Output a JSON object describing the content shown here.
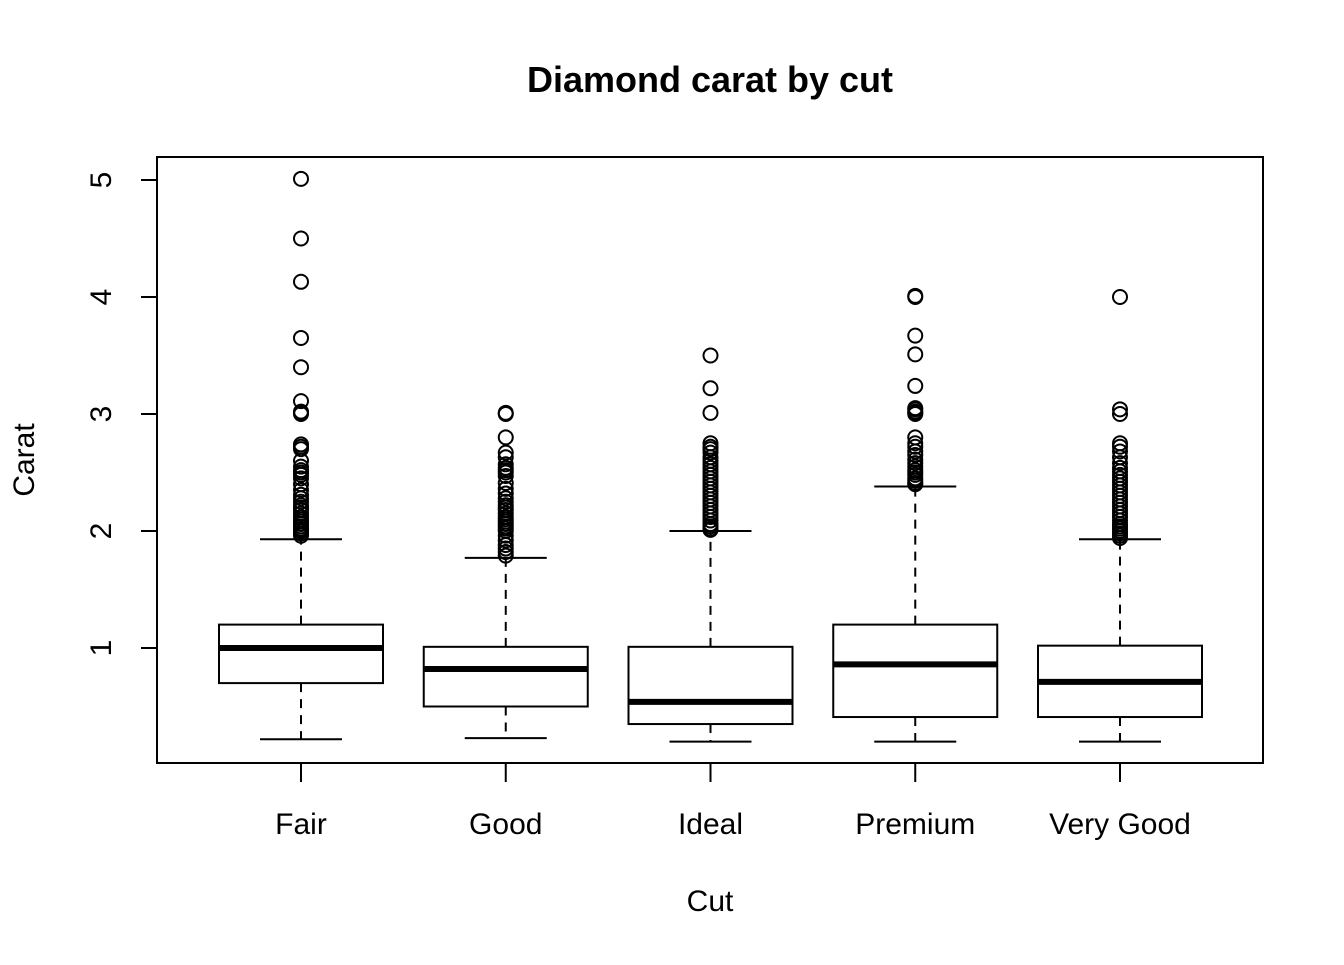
{
  "chart_data": {
    "type": "boxplot",
    "title": "Diamond carat by cut",
    "xlabel": "Cut",
    "ylabel": "Carat",
    "y_ticks": [
      1,
      2,
      3,
      4,
      5
    ],
    "ylim": [
      0.0,
      5.2
    ],
    "grid": false,
    "categories": [
      "Fair",
      "Good",
      "Ideal",
      "Premium",
      "Very Good"
    ],
    "boxes": [
      {
        "category": "Fair",
        "whisker_low": 0.22,
        "q1": 0.7,
        "median": 1.0,
        "q3": 1.2,
        "whisker_high": 1.93,
        "outliers": [
          5.01,
          4.5,
          4.13,
          3.65,
          3.4,
          3.11,
          3.02,
          3.01,
          3.0,
          2.74,
          2.72,
          2.7,
          2.6,
          2.55,
          2.52,
          2.5,
          2.48,
          2.45,
          2.4,
          2.35,
          2.31,
          2.28,
          2.25,
          2.22,
          2.2,
          2.18,
          2.15,
          2.12,
          2.1,
          2.08,
          2.06,
          2.04,
          2.02,
          2.01,
          2.0,
          1.98,
          1.96
        ]
      },
      {
        "category": "Good",
        "whisker_low": 0.23,
        "q1": 0.5,
        "median": 0.82,
        "q3": 1.01,
        "whisker_high": 1.77,
        "outliers": [
          3.01,
          3.0,
          2.8,
          2.67,
          2.63,
          2.57,
          2.54,
          2.52,
          2.5,
          2.47,
          2.41,
          2.36,
          2.32,
          2.28,
          2.25,
          2.22,
          2.2,
          2.18,
          2.15,
          2.12,
          2.1,
          2.08,
          2.06,
          2.04,
          2.02,
          2.0,
          1.96,
          1.92,
          1.88,
          1.85,
          1.82,
          1.79
        ]
      },
      {
        "category": "Ideal",
        "whisker_low": 0.2,
        "q1": 0.35,
        "median": 0.54,
        "q3": 1.01,
        "whisker_high": 2.0,
        "outliers": [
          3.5,
          3.22,
          3.01,
          2.75,
          2.72,
          2.7,
          2.67,
          2.63,
          2.6,
          2.57,
          2.54,
          2.51,
          2.48,
          2.45,
          2.42,
          2.39,
          2.36,
          2.33,
          2.3,
          2.27,
          2.24,
          2.21,
          2.18,
          2.15,
          2.12,
          2.09,
          2.06,
          2.04,
          2.02,
          2.01
        ]
      },
      {
        "category": "Premium",
        "whisker_low": 0.2,
        "q1": 0.41,
        "median": 0.86,
        "q3": 1.2,
        "whisker_high": 2.38,
        "outliers": [
          4.01,
          4.0,
          3.67,
          3.51,
          3.24,
          3.05,
          3.04,
          3.02,
          3.01,
          3.0,
          2.8,
          2.75,
          2.72,
          2.68,
          2.65,
          2.61,
          2.58,
          2.55,
          2.52,
          2.5,
          2.48,
          2.45,
          2.43,
          2.41,
          2.4
        ]
      },
      {
        "category": "Very Good",
        "whisker_low": 0.2,
        "q1": 0.41,
        "median": 0.71,
        "q3": 1.02,
        "whisker_high": 1.93,
        "outliers": [
          4.0,
          3.04,
          3.0,
          2.75,
          2.72,
          2.68,
          2.63,
          2.58,
          2.54,
          2.51,
          2.48,
          2.45,
          2.42,
          2.39,
          2.36,
          2.33,
          2.3,
          2.27,
          2.24,
          2.21,
          2.18,
          2.15,
          2.12,
          2.09,
          2.06,
          2.04,
          2.02,
          2.0,
          1.98,
          1.96,
          1.94
        ]
      }
    ]
  }
}
